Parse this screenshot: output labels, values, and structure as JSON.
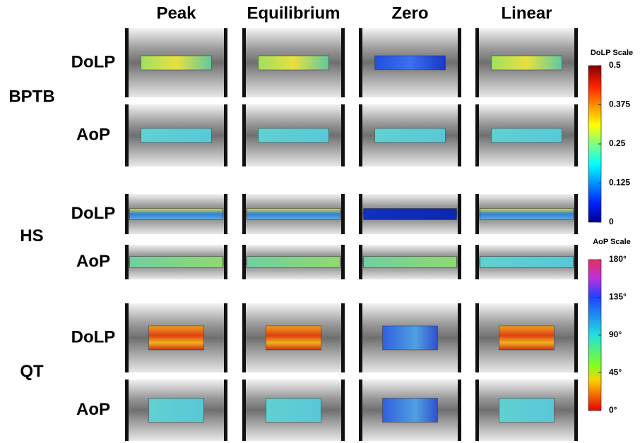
{
  "columns": [
    "Peak",
    "Equilibrium",
    "Zero",
    "Linear"
  ],
  "groups": [
    {
      "name": "BPTB",
      "rows": [
        "DoLP",
        "AoP"
      ]
    },
    {
      "name": "HS",
      "rows": [
        "DoLP",
        "AoP"
      ]
    },
    {
      "name": "QT",
      "rows": [
        "DoLP",
        "AoP"
      ]
    }
  ],
  "scales": [
    {
      "title": "DoLP Scale",
      "ticks": [
        0,
        0.125,
        0.25,
        0.375,
        0.5
      ]
    },
    {
      "title": "AoP Scale",
      "ticks": [
        {
          "value": 0,
          "label": "0°"
        },
        {
          "value": 45,
          "label": "45°"
        },
        {
          "value": 90,
          "label": "90°"
        },
        {
          "value": 135,
          "label": "135°"
        },
        {
          "value": 180,
          "label": "180°"
        }
      ]
    }
  ]
}
